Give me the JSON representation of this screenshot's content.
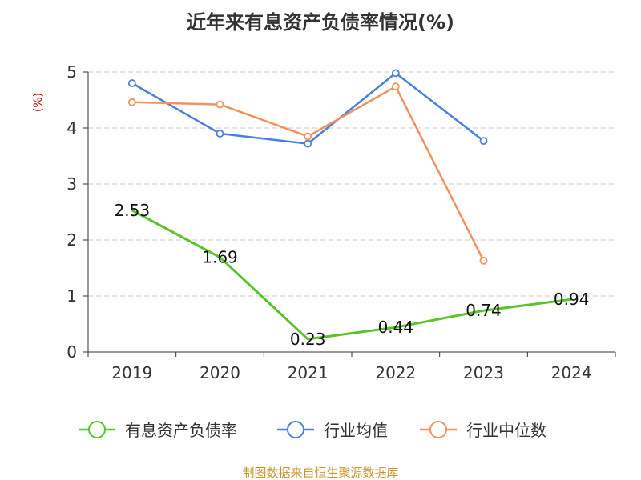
{
  "chart_data": {
    "type": "line",
    "title": "近年来有息资产负债率情况(%)",
    "ylabel": "(%)",
    "xlabel": "",
    "categories": [
      "2019",
      "2020",
      "2021",
      "2022",
      "2023",
      "2024"
    ],
    "ylim": [
      0,
      5
    ],
    "yticks": [
      0,
      1,
      2,
      3,
      4,
      5
    ],
    "grid": true,
    "legend_position": "bottom",
    "series": [
      {
        "name": "有息资产负债率",
        "color": "#5ac328",
        "values": [
          2.53,
          1.69,
          0.23,
          0.44,
          0.74,
          0.94
        ],
        "data_labels": [
          "2.53",
          "1.69",
          "0.23",
          "0.44",
          "0.74",
          "0.94"
        ],
        "markers": false
      },
      {
        "name": "行业均值",
        "color": "#4a7fdc",
        "values": [
          4.8,
          3.9,
          3.72,
          4.98,
          3.77,
          null
        ],
        "markers": true
      },
      {
        "name": "行业中位数",
        "color": "#f5905a",
        "values": [
          4.46,
          4.42,
          3.85,
          4.74,
          1.63,
          null
        ],
        "markers": true
      }
    ]
  },
  "footer": {
    "source": "制图数据来自恒生聚源数据库"
  }
}
